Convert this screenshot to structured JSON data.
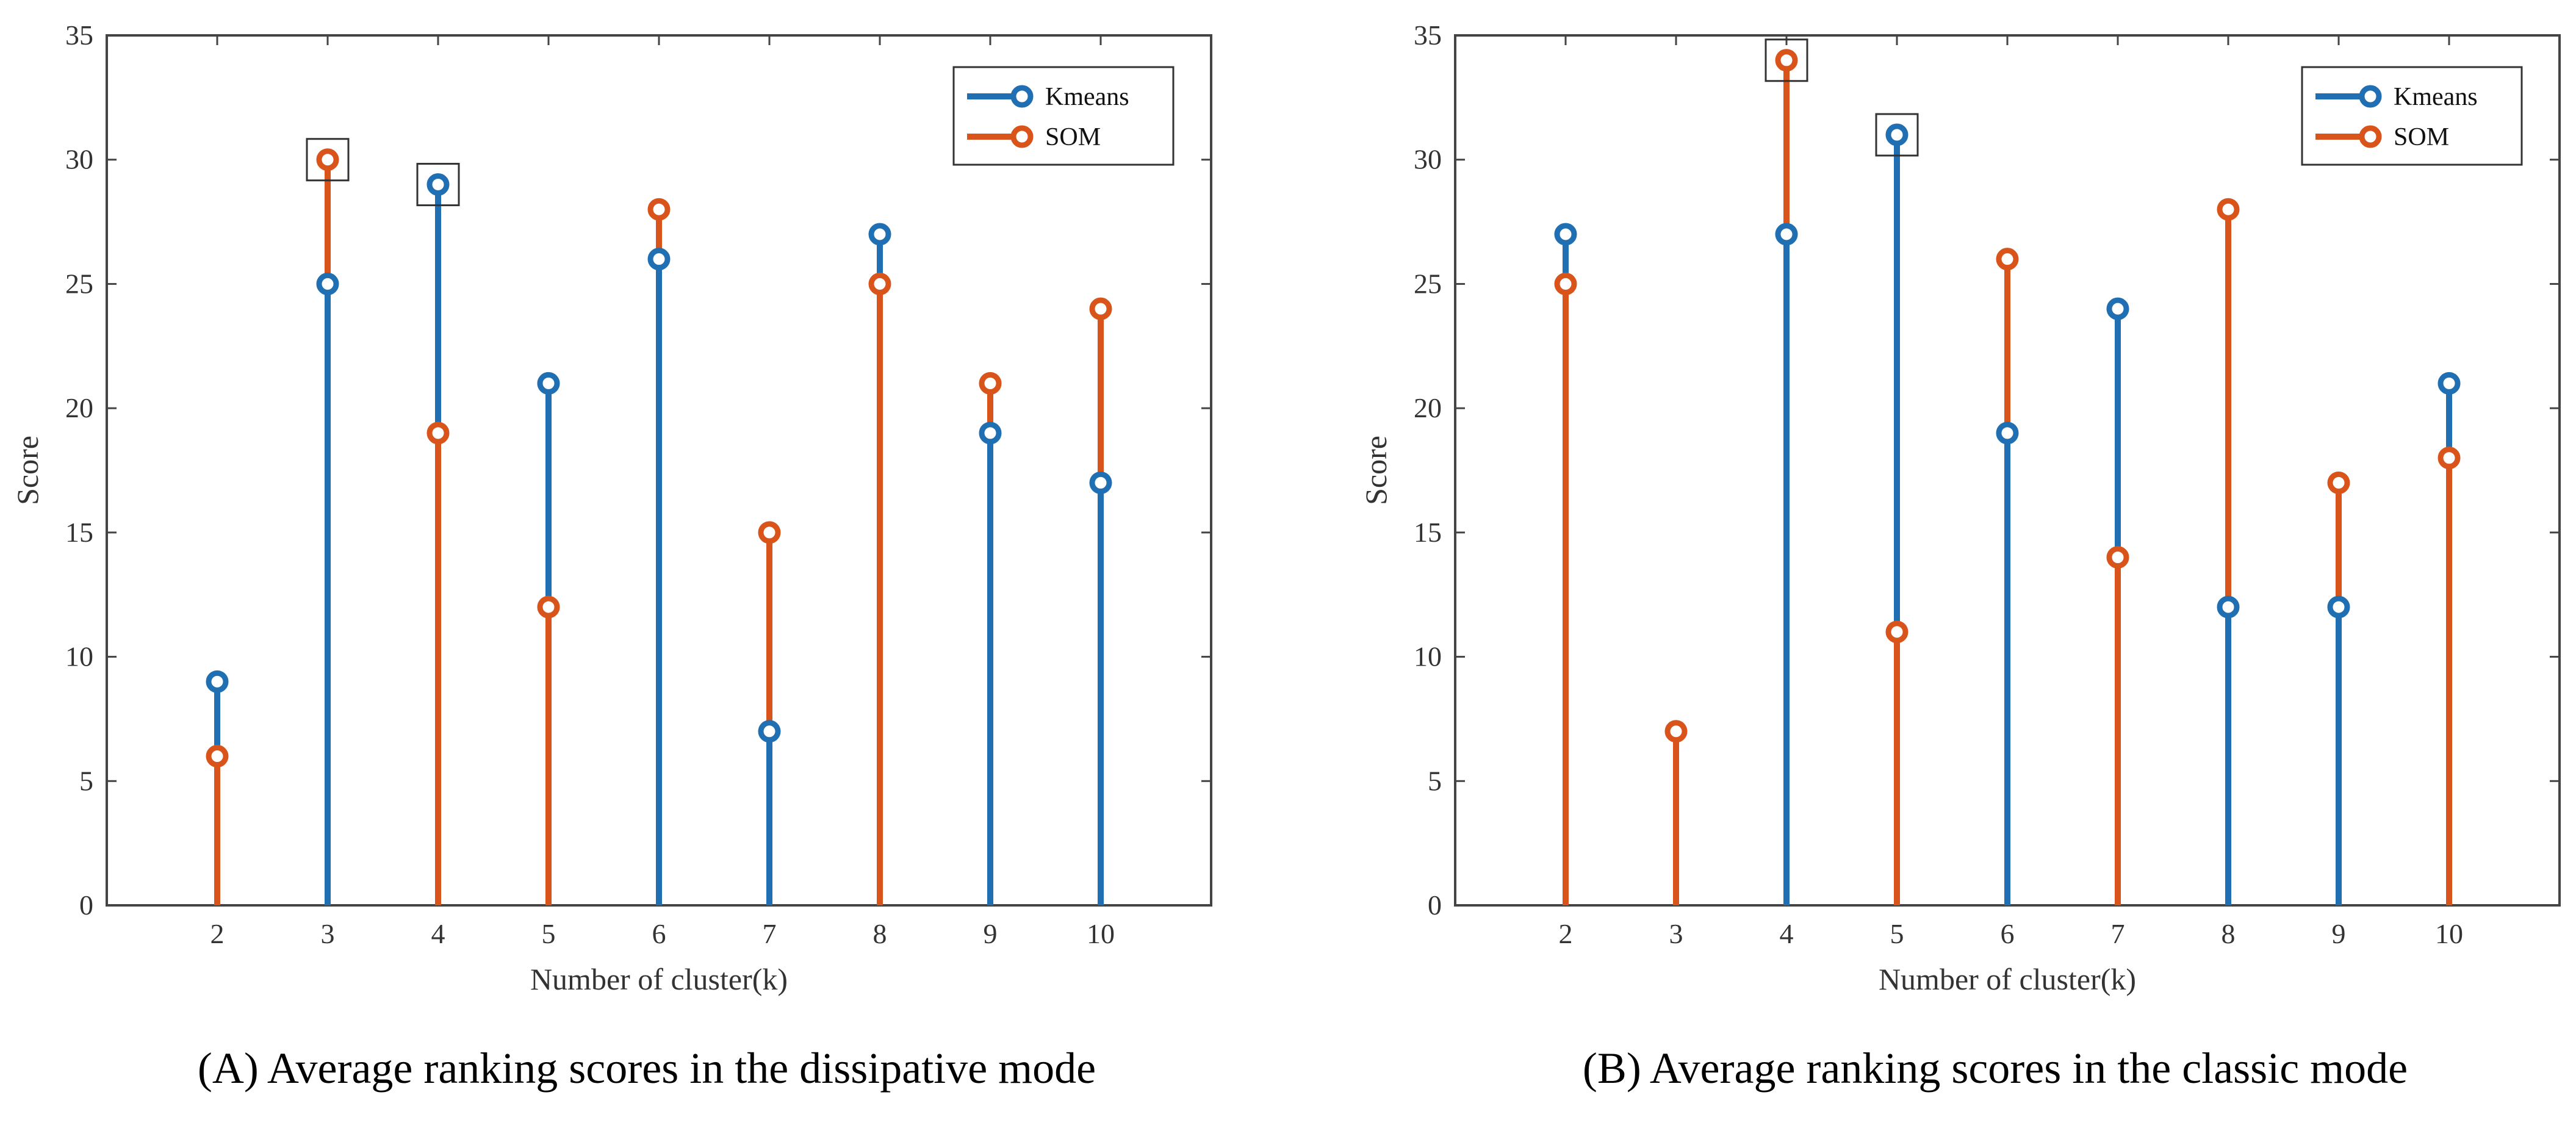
{
  "chart_data": [
    {
      "type": "stem",
      "panel": "A",
      "caption": "(A) Average ranking scores in the dissipative mode",
      "xlabel": "Number of cluster(k)",
      "ylabel": "Score",
      "xlim": [
        1,
        11
      ],
      "ylim": [
        0,
        35
      ],
      "xticks": [
        2,
        3,
        4,
        5,
        6,
        7,
        8,
        9,
        10
      ],
      "yticks": [
        0,
        5,
        10,
        15,
        20,
        25,
        30,
        35
      ],
      "legend_position": "top-right",
      "colors": {
        "kmeans": "#1f6fb2",
        "som": "#d9541a",
        "frame": "#444444",
        "highlight": "#333333"
      },
      "series": [
        {
          "name": "Kmeans",
          "x": [
            2,
            3,
            4,
            5,
            6,
            7,
            8,
            9,
            10
          ],
          "values": [
            9,
            25,
            29,
            21,
            26,
            7,
            27,
            19,
            17
          ]
        },
        {
          "name": "SOM",
          "x": [
            2,
            3,
            4,
            5,
            6,
            7,
            8,
            9,
            10
          ],
          "values": [
            6,
            30,
            19,
            12,
            28,
            15,
            25,
            21,
            24
          ]
        }
      ],
      "highlights": [
        {
          "series": "SOM",
          "x": 3,
          "y": 30
        },
        {
          "series": "Kmeans",
          "x": 4,
          "y": 29
        }
      ]
    },
    {
      "type": "stem",
      "panel": "B",
      "caption": "(B) Average ranking scores in the classic mode",
      "xlabel": "Number of cluster(k)",
      "ylabel": "Score",
      "xlim": [
        1,
        11
      ],
      "ylim": [
        0,
        35
      ],
      "xticks": [
        2,
        3,
        4,
        5,
        6,
        7,
        8,
        9,
        10
      ],
      "yticks": [
        0,
        5,
        10,
        15,
        20,
        25,
        30,
        35
      ],
      "legend_position": "top-right",
      "colors": {
        "kmeans": "#1f6fb2",
        "som": "#d9541a",
        "frame": "#444444",
        "highlight": "#333333"
      },
      "series": [
        {
          "name": "Kmeans",
          "x": [
            2,
            3,
            4,
            5,
            6,
            7,
            8,
            9,
            10
          ],
          "values": [
            27,
            null,
            27,
            31,
            19,
            24,
            12,
            12,
            21
          ]
        },
        {
          "name": "SOM",
          "x": [
            2,
            3,
            4,
            5,
            6,
            7,
            8,
            9,
            10
          ],
          "values": [
            25,
            7,
            34,
            11,
            26,
            14,
            28,
            17,
            18
          ]
        }
      ],
      "highlights": [
        {
          "series": "SOM",
          "x": 4,
          "y": 34
        },
        {
          "series": "Kmeans",
          "x": 5,
          "y": 31
        }
      ]
    }
  ]
}
